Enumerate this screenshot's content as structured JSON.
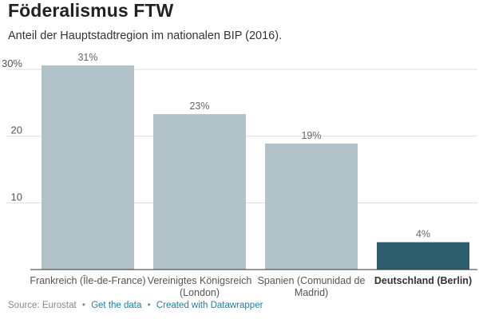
{
  "title": "Föderalismus FTW",
  "subtitle": "Anteil der Hauptstadtregion im nationalen BIP (2016).",
  "chart_data": {
    "type": "bar",
    "title": "Föderalismus FTW",
    "subtitle": "Anteil der Hauptstadtregion im nationalen BIP (2016).",
    "categories": [
      [
        "Frankreich (Île-de-France)"
      ],
      [
        "Vereinigtes Königsreich",
        "(London)"
      ],
      [
        "Spanien (Comunidad de",
        "Madrid)"
      ],
      [
        "Deutschland (Berlin)"
      ]
    ],
    "values": [
      30.6,
      23.3,
      18.9,
      4.1
    ],
    "value_labels": [
      "31%",
      "23%",
      "19%",
      "4%"
    ],
    "highlight_index": 3,
    "y_ticks": [
      {
        "value": 10,
        "label": "10"
      },
      {
        "value": 20,
        "label": "20"
      },
      {
        "value": 30,
        "label": "30%"
      }
    ],
    "ylim": [
      0,
      33
    ],
    "grid": true,
    "colors": {
      "bar": "#b1c3c9",
      "highlight": "#2d5f6e",
      "grid": "#dddddd",
      "axis": "#333333"
    }
  },
  "footer": {
    "source": "Source: Eurostat",
    "separator": "•",
    "get_data": "Get the data",
    "created_with": "Created with Datawrapper"
  }
}
